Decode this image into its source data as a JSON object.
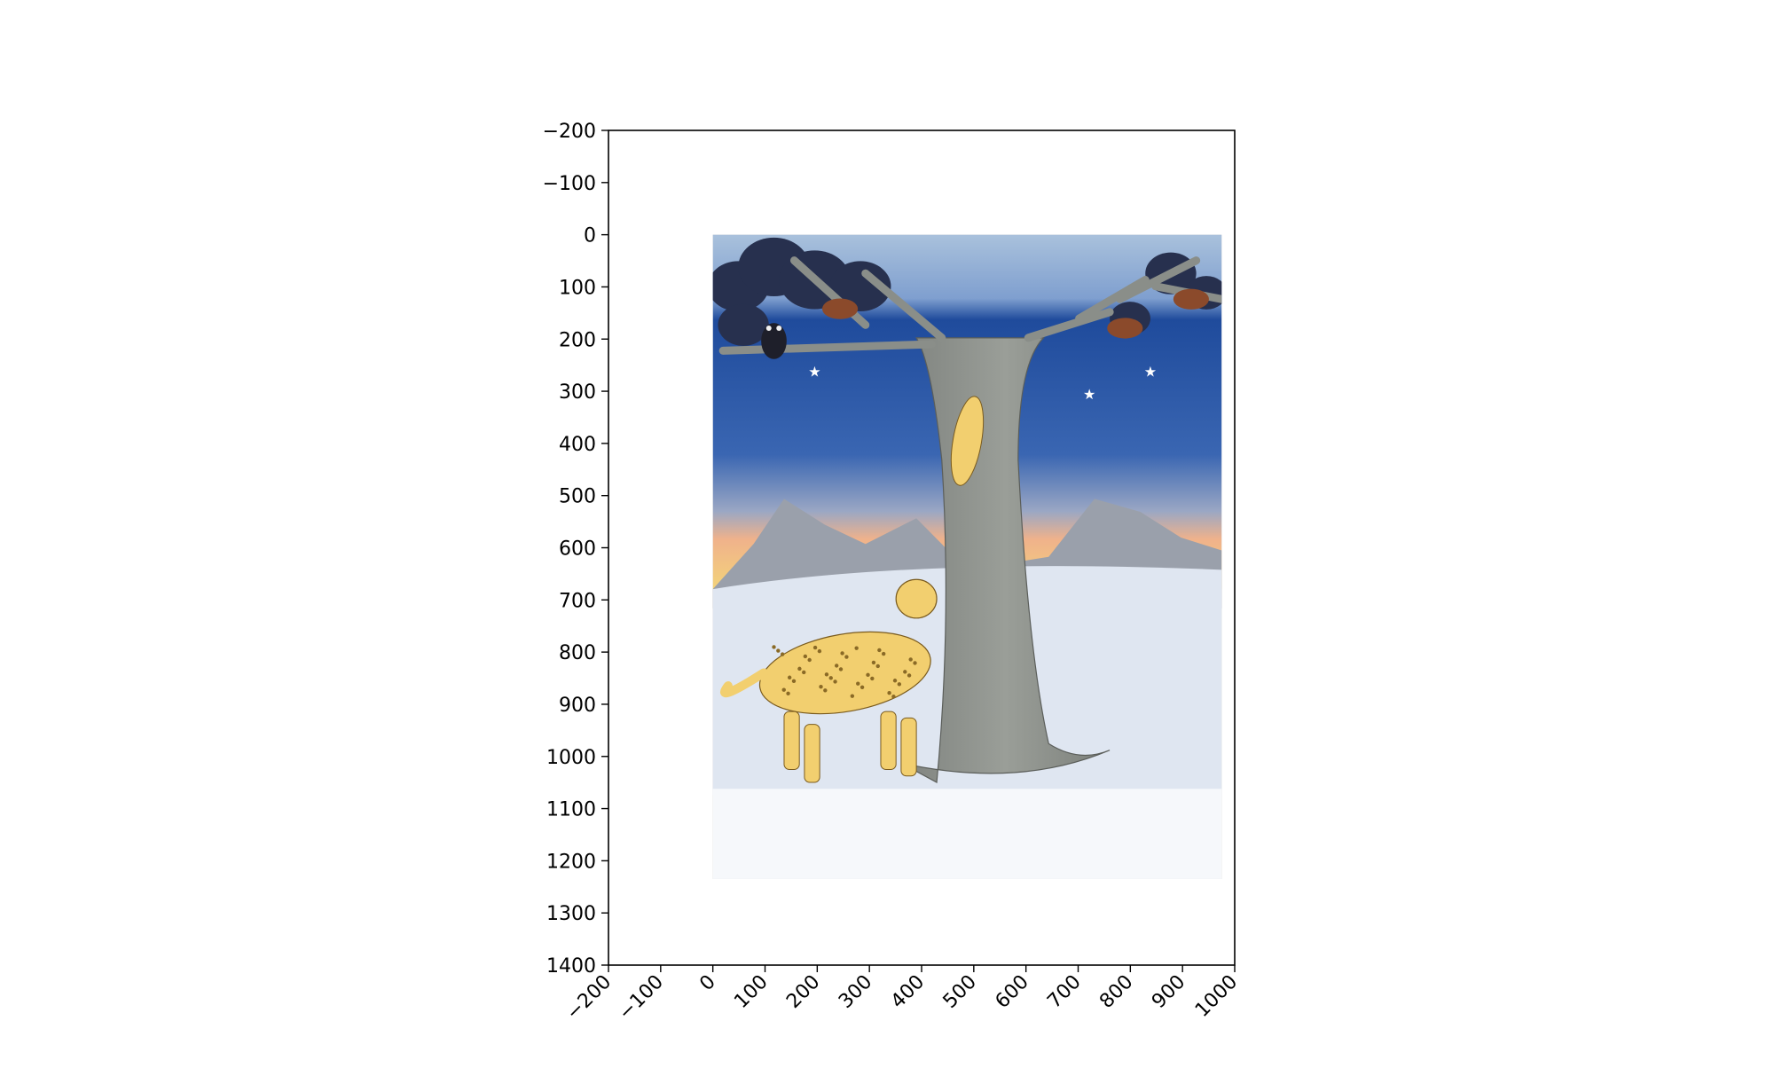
{
  "chart_data": {
    "type": "image",
    "xlim": [
      -200,
      1000
    ],
    "ylim": [
      1400,
      -200
    ],
    "x_ticks": [
      -200,
      -100,
      0,
      100,
      200,
      300,
      400,
      500,
      600,
      700,
      800,
      900,
      1000
    ],
    "y_ticks": [
      -200,
      -100,
      0,
      100,
      200,
      300,
      400,
      500,
      600,
      700,
      800,
      900,
      1000,
      1100,
      1200,
      1300,
      1400
    ],
    "x_tick_labels": [
      "−200",
      "−100",
      "0",
      "100",
      "200",
      "300",
      "400",
      "500",
      "600",
      "700",
      "800",
      "900",
      "1000"
    ],
    "y_tick_labels": [
      "−200",
      "−100",
      "0",
      "100",
      "200",
      "300",
      "400",
      "500",
      "600",
      "700",
      "800",
      "900",
      "1000",
      "1100",
      "1200",
      "1300",
      "1400"
    ],
    "image_extent": [
      0,
      975,
      1235,
      0
    ],
    "title": "",
    "xlabel": "",
    "ylabel": "",
    "grid": false
  },
  "scene": {
    "sky_colors": [
      "#9fb9d6",
      "#1f4b9c",
      "#2d5aa8"
    ],
    "tree_color": "#8f938e",
    "leopard_color": "#f2cf6f",
    "snow_color": "#dfe6f1"
  }
}
